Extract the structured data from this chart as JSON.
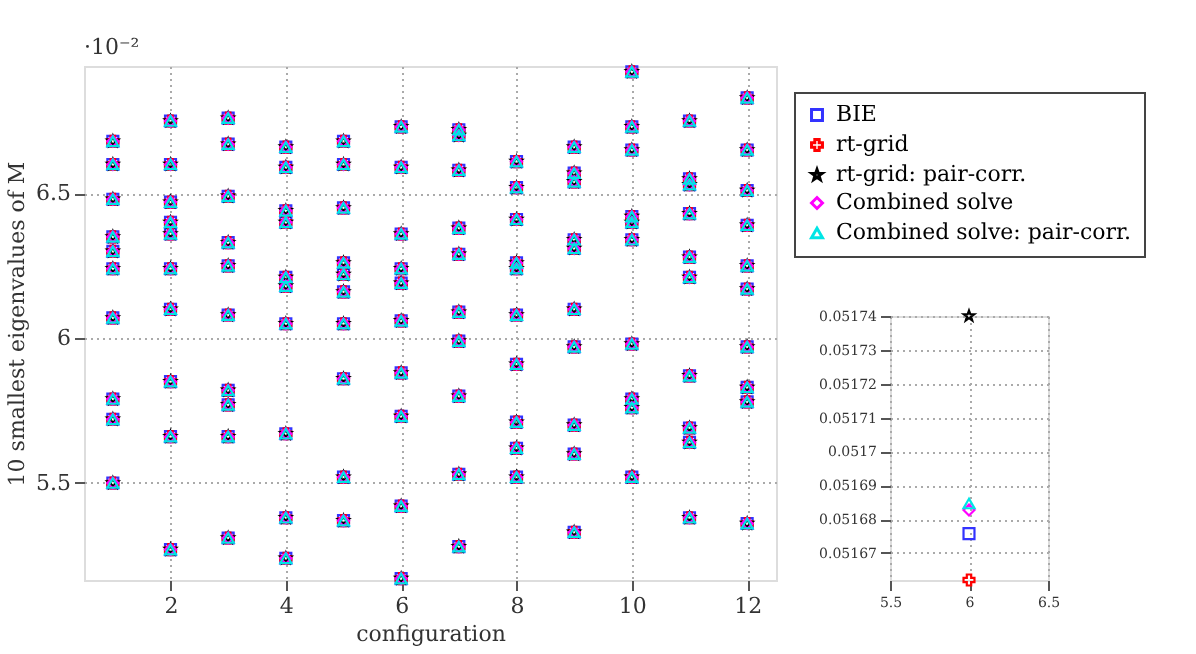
{
  "chart_data": [
    {
      "type": "scatter",
      "xlabel": "configuration",
      "ylabel": "10 smallest eigenvalues of M",
      "annotations": [
        "·10⁻²"
      ],
      "xlim": [
        0.5,
        12.5
      ],
      "xticks": [
        2,
        4,
        6,
        8,
        10,
        12
      ],
      "ylim": [
        5.165,
        6.94
      ],
      "yticks": [
        5.5,
        6,
        6.5
      ],
      "grid": true,
      "legend": "top right",
      "x": [
        1,
        1,
        1,
        1,
        1,
        1,
        1,
        1,
        1,
        1,
        2,
        2,
        2,
        2,
        2,
        2,
        2,
        2,
        2,
        2,
        3,
        3,
        3,
        3,
        3,
        3,
        3,
        3,
        3,
        3,
        4,
        4,
        4,
        4,
        4,
        4,
        4,
        4,
        4,
        4,
        5,
        5,
        5,
        5,
        5,
        5,
        5,
        5,
        5,
        5,
        6,
        6,
        6,
        6,
        6,
        6,
        6,
        6,
        6,
        6,
        7,
        7,
        7,
        7,
        7,
        7,
        7,
        7,
        7,
        7,
        8,
        8,
        8,
        8,
        8,
        8,
        8,
        8,
        8,
        8,
        9,
        9,
        9,
        9,
        9,
        9,
        9,
        9,
        9,
        9,
        10,
        10,
        10,
        10,
        10,
        10,
        10,
        10,
        10,
        10,
        11,
        11,
        11,
        11,
        11,
        11,
        11,
        11,
        11,
        11,
        12,
        12,
        12,
        12,
        12,
        12,
        12,
        12,
        12,
        12
      ],
      "series": [
        {
          "name": "BIE",
          "color": "#3333ff",
          "marker": "square",
          "values": [
            6.68,
            6.6,
            6.48,
            6.35,
            6.3,
            6.24,
            6.07,
            5.79,
            5.72,
            5.5,
            6.75,
            6.6,
            6.47,
            6.4,
            6.36,
            6.24,
            6.1,
            5.85,
            5.66,
            5.27,
            6.76,
            6.67,
            6.49,
            6.33,
            6.25,
            6.08,
            5.82,
            5.77,
            5.66,
            5.31,
            6.66,
            6.59,
            6.44,
            6.4,
            6.21,
            6.18,
            6.05,
            5.67,
            5.38,
            5.24,
            6.68,
            6.6,
            6.45,
            6.26,
            6.22,
            6.16,
            6.05,
            5.86,
            5.52,
            5.37,
            6.73,
            6.59,
            6.36,
            6.24,
            6.19,
            6.06,
            5.88,
            5.73,
            5.42,
            5.17,
            6.72,
            6.7,
            6.58,
            6.38,
            6.29,
            6.09,
            5.99,
            5.8,
            5.53,
            5.28,
            6.61,
            6.52,
            6.41,
            6.26,
            6.24,
            6.08,
            5.91,
            5.71,
            5.62,
            5.52,
            6.66,
            6.57,
            6.54,
            6.34,
            6.31,
            6.1,
            5.97,
            5.7,
            5.6,
            5.33,
            6.92,
            6.73,
            6.65,
            6.42,
            6.4,
            6.34,
            5.98,
            5.79,
            5.76,
            5.52,
            6.75,
            6.55,
            6.53,
            6.43,
            6.28,
            6.21,
            5.87,
            5.69,
            5.64,
            5.38,
            6.83,
            6.65,
            6.51,
            6.39,
            6.25,
            6.17,
            5.97,
            5.83,
            5.78,
            5.36
          ]
        },
        {
          "name": "rt-grid",
          "color": "#ff0000",
          "marker": "cross",
          "values": [
            6.68,
            6.6,
            6.48,
            6.35,
            6.3,
            6.24,
            6.07,
            5.79,
            5.72,
            5.5,
            6.75,
            6.6,
            6.47,
            6.4,
            6.36,
            6.24,
            6.1,
            5.85,
            5.66,
            5.27,
            6.76,
            6.67,
            6.49,
            6.33,
            6.25,
            6.08,
            5.82,
            5.77,
            5.66,
            5.31,
            6.66,
            6.59,
            6.44,
            6.4,
            6.21,
            6.18,
            6.05,
            5.67,
            5.38,
            5.24,
            6.68,
            6.6,
            6.45,
            6.26,
            6.22,
            6.16,
            6.05,
            5.86,
            5.52,
            5.37,
            6.73,
            6.59,
            6.36,
            6.24,
            6.19,
            6.06,
            5.88,
            5.73,
            5.42,
            5.17,
            6.72,
            6.7,
            6.58,
            6.38,
            6.29,
            6.09,
            5.99,
            5.8,
            5.53,
            5.28,
            6.61,
            6.52,
            6.41,
            6.26,
            6.24,
            6.08,
            5.91,
            5.71,
            5.62,
            5.52,
            6.66,
            6.57,
            6.54,
            6.34,
            6.31,
            6.1,
            5.97,
            5.7,
            5.6,
            5.33,
            6.92,
            6.73,
            6.65,
            6.42,
            6.4,
            6.34,
            5.98,
            5.79,
            5.76,
            5.52,
            6.75,
            6.55,
            6.53,
            6.43,
            6.28,
            6.21,
            5.87,
            5.69,
            5.64,
            5.38,
            6.83,
            6.65,
            6.51,
            6.39,
            6.25,
            6.17,
            5.97,
            5.83,
            5.78,
            5.36
          ]
        },
        {
          "name": "rt-grid: pair-corr.",
          "color": "#000000",
          "marker": "star",
          "values": [
            6.68,
            6.6,
            6.48,
            6.35,
            6.3,
            6.24,
            6.07,
            5.79,
            5.72,
            5.5,
            6.75,
            6.6,
            6.47,
            6.4,
            6.36,
            6.24,
            6.1,
            5.85,
            5.66,
            5.27,
            6.76,
            6.67,
            6.49,
            6.33,
            6.25,
            6.08,
            5.82,
            5.77,
            5.66,
            5.31,
            6.66,
            6.59,
            6.44,
            6.4,
            6.21,
            6.18,
            6.05,
            5.67,
            5.38,
            5.24,
            6.68,
            6.6,
            6.45,
            6.26,
            6.22,
            6.16,
            6.05,
            5.86,
            5.52,
            5.37,
            6.73,
            6.59,
            6.36,
            6.24,
            6.19,
            6.06,
            5.88,
            5.73,
            5.42,
            5.17,
            6.72,
            6.7,
            6.58,
            6.38,
            6.29,
            6.09,
            5.99,
            5.8,
            5.53,
            5.28,
            6.61,
            6.52,
            6.41,
            6.26,
            6.24,
            6.08,
            5.91,
            5.71,
            5.62,
            5.52,
            6.66,
            6.57,
            6.54,
            6.34,
            6.31,
            6.1,
            5.97,
            5.7,
            5.6,
            5.33,
            6.92,
            6.73,
            6.65,
            6.42,
            6.4,
            6.34,
            5.98,
            5.79,
            5.76,
            5.52,
            6.75,
            6.55,
            6.53,
            6.43,
            6.28,
            6.21,
            5.87,
            5.69,
            5.64,
            5.38,
            6.83,
            6.65,
            6.51,
            6.39,
            6.25,
            6.17,
            5.97,
            5.83,
            5.78,
            5.36
          ]
        },
        {
          "name": "Combined solve",
          "color": "#ff00ff",
          "marker": "diamond",
          "values": [
            6.68,
            6.6,
            6.48,
            6.35,
            6.3,
            6.24,
            6.07,
            5.79,
            5.72,
            5.5,
            6.75,
            6.6,
            6.47,
            6.4,
            6.36,
            6.24,
            6.1,
            5.85,
            5.66,
            5.27,
            6.76,
            6.67,
            6.49,
            6.33,
            6.25,
            6.08,
            5.82,
            5.77,
            5.66,
            5.31,
            6.66,
            6.59,
            6.44,
            6.4,
            6.21,
            6.18,
            6.05,
            5.67,
            5.38,
            5.24,
            6.68,
            6.6,
            6.45,
            6.26,
            6.22,
            6.16,
            6.05,
            5.86,
            5.52,
            5.37,
            6.73,
            6.59,
            6.36,
            6.24,
            6.19,
            6.06,
            5.88,
            5.73,
            5.42,
            5.17,
            6.72,
            6.7,
            6.58,
            6.38,
            6.29,
            6.09,
            5.99,
            5.8,
            5.53,
            5.28,
            6.61,
            6.52,
            6.41,
            6.26,
            6.24,
            6.08,
            5.91,
            5.71,
            5.62,
            5.52,
            6.66,
            6.57,
            6.54,
            6.34,
            6.31,
            6.1,
            5.97,
            5.7,
            5.6,
            5.33,
            6.92,
            6.73,
            6.65,
            6.42,
            6.4,
            6.34,
            5.98,
            5.79,
            5.76,
            5.52,
            6.75,
            6.55,
            6.53,
            6.43,
            6.28,
            6.21,
            5.87,
            5.69,
            5.64,
            5.38,
            6.83,
            6.65,
            6.51,
            6.39,
            6.25,
            6.17,
            5.97,
            5.83,
            5.78,
            5.36
          ]
        },
        {
          "name": "Combined solve: pair-corr.",
          "color": "#00e5e5",
          "marker": "triangle",
          "values": [
            6.68,
            6.6,
            6.48,
            6.35,
            6.3,
            6.24,
            6.07,
            5.79,
            5.72,
            5.5,
            6.75,
            6.6,
            6.47,
            6.4,
            6.36,
            6.24,
            6.1,
            5.85,
            5.66,
            5.27,
            6.76,
            6.67,
            6.49,
            6.33,
            6.25,
            6.08,
            5.82,
            5.77,
            5.66,
            5.31,
            6.66,
            6.59,
            6.44,
            6.4,
            6.21,
            6.18,
            6.05,
            5.67,
            5.38,
            5.24,
            6.68,
            6.6,
            6.45,
            6.26,
            6.22,
            6.16,
            6.05,
            5.86,
            5.52,
            5.37,
            6.73,
            6.59,
            6.36,
            6.24,
            6.19,
            6.06,
            5.88,
            5.73,
            5.42,
            5.17,
            6.72,
            6.7,
            6.58,
            6.38,
            6.29,
            6.09,
            5.99,
            5.8,
            5.53,
            5.28,
            6.61,
            6.52,
            6.41,
            6.26,
            6.24,
            6.08,
            5.91,
            5.71,
            5.62,
            5.52,
            6.66,
            6.57,
            6.54,
            6.34,
            6.31,
            6.1,
            5.97,
            5.7,
            5.6,
            5.33,
            6.92,
            6.73,
            6.65,
            6.42,
            6.4,
            6.34,
            5.98,
            5.79,
            5.76,
            5.52,
            6.75,
            6.55,
            6.53,
            6.43,
            6.28,
            6.21,
            5.87,
            5.69,
            5.64,
            5.38,
            6.83,
            6.65,
            6.51,
            6.39,
            6.25,
            6.17,
            5.97,
            5.83,
            5.78,
            5.36
          ]
        }
      ]
    },
    {
      "type": "scatter",
      "xlim": [
        5.5,
        6.5
      ],
      "xticks": [
        5.5,
        6,
        6.5
      ],
      "ylim": [
        0.051662,
        0.05174
      ],
      "yticks": [
        0.05167,
        0.05168,
        0.05169,
        0.0517,
        0.05171,
        0.05172,
        0.05173,
        0.05174
      ],
      "grid": true,
      "x": [
        6
      ],
      "series": [
        {
          "color": "#3333ff",
          "marker": "square",
          "values": [
            0.0516757
          ]
        },
        {
          "color": "#ff0000",
          "marker": "cross",
          "values": [
            0.051662
          ]
        },
        {
          "color": "#000000",
          "marker": "star",
          "values": [
            0.05174
          ]
        },
        {
          "color": "#ff00ff",
          "marker": "diamond",
          "values": [
            0.0516827
          ]
        },
        {
          "color": "#00e5e5",
          "marker": "triangle",
          "values": [
            0.0516846
          ]
        }
      ]
    }
  ]
}
